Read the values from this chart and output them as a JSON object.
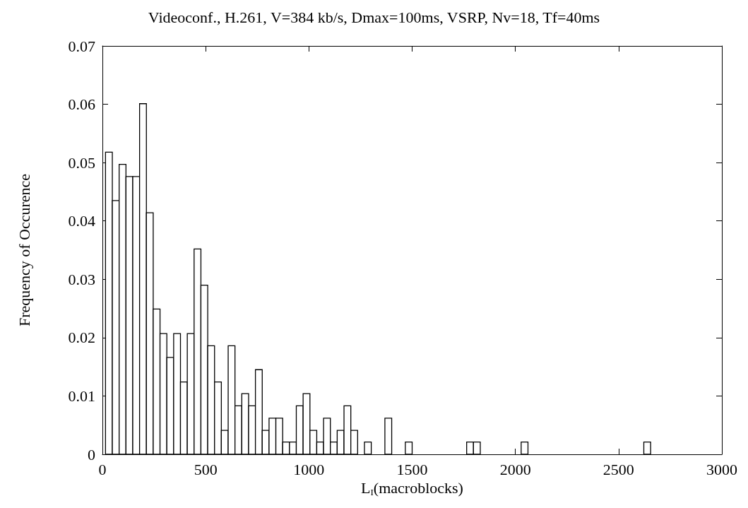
{
  "chart_data": {
    "type": "histogram",
    "title": "Videoconf., H.261, V=384 kb/s, Dmax=100ms, VSRP, Nv=18, Tf=40ms",
    "xlabel": "L$_{I}$(macroblocks)",
    "ylabel": "Frequency of Occurence",
    "bins": [
      15,
      48,
      81,
      114,
      147,
      180,
      213,
      246,
      279,
      312,
      345,
      378,
      411,
      444,
      477,
      510,
      543,
      576,
      609,
      642,
      675,
      708,
      741,
      774,
      807,
      840,
      873,
      906,
      939,
      972,
      1005,
      1038,
      1071,
      1104,
      1137,
      1170,
      1203,
      1236,
      1269,
      1302,
      1335,
      1368,
      1401,
      1434,
      1467,
      1500,
      1533,
      1566,
      1599,
      1632,
      1665,
      1698,
      1731,
      1764,
      1797,
      1830,
      1863,
      1896,
      1929,
      1962,
      1995,
      2028,
      2061,
      2094,
      2127,
      2160,
      2193,
      2226,
      2259,
      2292,
      2325,
      2358,
      2391,
      2424,
      2457,
      2490,
      2523,
      2556,
      2589,
      2622,
      2655
    ],
    "values": [
      0.0518,
      0.0435,
      0.0497,
      0.0476,
      0.0476,
      0.0601,
      0.0414,
      0.0249,
      0.0207,
      0.0166,
      0.0207,
      0.0124,
      0.0207,
      0.0352,
      0.029,
      0.0186,
      0.0124,
      0.0041,
      0.0186,
      0.0083,
      0.0104,
      0.0083,
      0.0145,
      0.0041,
      0.0062,
      0.0062,
      0.0021,
      0.0021,
      0.0083,
      0.0104,
      0.0041,
      0.0021,
      0.0062,
      0.0021,
      0.0041,
      0.0083,
      0.0041,
      0,
      0.0021,
      0,
      0,
      0.0062,
      0,
      0,
      0.0021,
      0,
      0,
      0,
      0,
      0,
      0,
      0,
      0,
      0.0021,
      0.0021,
      0,
      0,
      0,
      0,
      0,
      0,
      0.0021,
      0,
      0,
      0,
      0,
      0,
      0,
      0,
      0,
      0,
      0,
      0,
      0,
      0,
      0,
      0,
      0,
      0,
      0.0021
    ],
    "color": "#ffffff",
    "xlim": [
      0,
      3000
    ],
    "xticks": [
      0,
      500,
      1000,
      1500,
      2000,
      2500,
      3000
    ],
    "ylim": [
      0,
      0.07
    ],
    "yticks": [
      0,
      0.01,
      0.02,
      0.03,
      0.04,
      0.05,
      0.06,
      0.07
    ],
    "grid": false
  }
}
